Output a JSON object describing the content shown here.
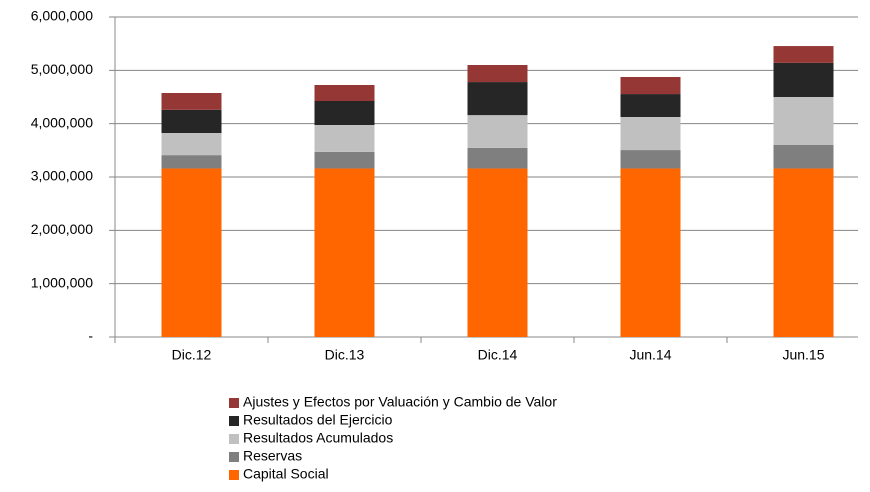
{
  "chart_data": {
    "type": "bar",
    "stacked": true,
    "categories": [
      "Dic.12",
      "Dic.13",
      "Dic.14",
      "Jun.14",
      "Jun.15"
    ],
    "series": [
      {
        "name": "Capital Social",
        "color": "#ff6600",
        "values": [
          3160000,
          3160000,
          3160000,
          3160000,
          3160000
        ]
      },
      {
        "name": "Reservas",
        "color": "#7f7f7f",
        "values": [
          250000,
          310000,
          385000,
          345000,
          440000
        ]
      },
      {
        "name": "Resultados Acumulados",
        "color": "#c0c0c0",
        "values": [
          415000,
          505000,
          615000,
          620000,
          900000
        ]
      },
      {
        "name": "Resultados del Ejercicio",
        "color": "#262626",
        "values": [
          435000,
          450000,
          620000,
          430000,
          640000
        ]
      },
      {
        "name": "Ajustes y Efectos por Valuación y Cambio de Valor",
        "color": "#953735",
        "values": [
          315000,
          300000,
          320000,
          320000,
          315000
        ]
      }
    ],
    "ylim": [
      0,
      6000000
    ],
    "yticks": [
      {
        "value": 0,
        "label": "-"
      },
      {
        "value": 1000000,
        "label": "1,000,000"
      },
      {
        "value": 2000000,
        "label": "2,000,000"
      },
      {
        "value": 3000000,
        "label": "3,000,000"
      },
      {
        "value": 4000000,
        "label": "4,000,000"
      },
      {
        "value": 5000000,
        "label": "5,000,000"
      },
      {
        "value": 6000000,
        "label": "6,000,000"
      }
    ],
    "grid": true,
    "legend": "bottom"
  }
}
